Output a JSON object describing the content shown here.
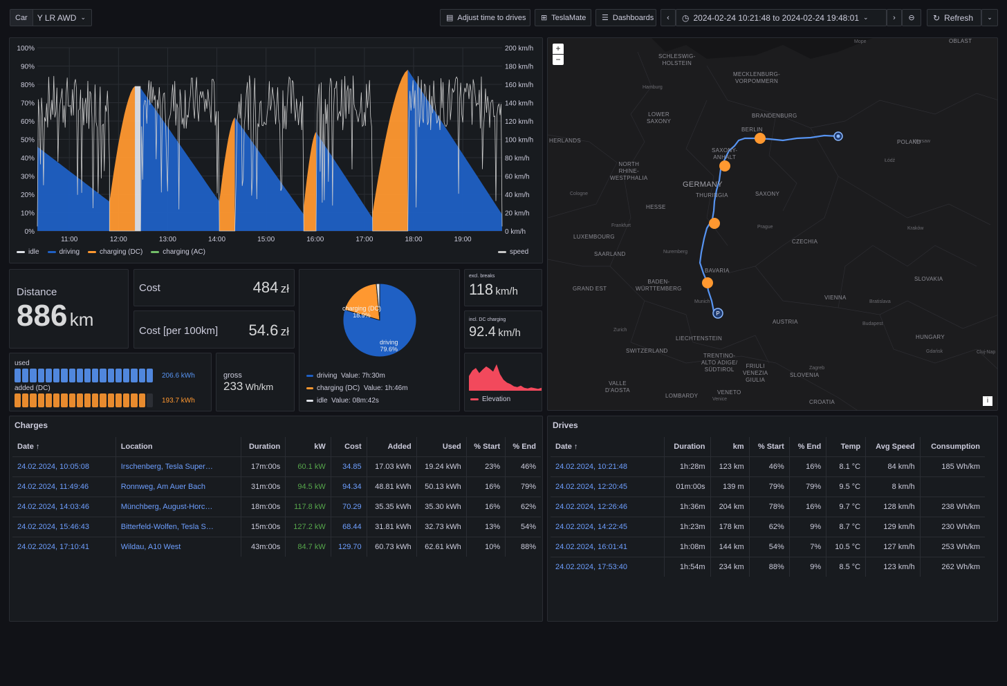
{
  "toolbar": {
    "car_label": "Car",
    "car_value": "Y LR AWD",
    "adjust": "Adjust time to drives",
    "teslamate": "TeslaMate",
    "dashboards": "Dashboards",
    "timerange": "2024-02-24 10:21:48 to 2024-02-24 19:48:01",
    "refresh": "Refresh"
  },
  "chart_data": [
    {
      "type": "area",
      "x_ticks": [
        "11:00",
        "12:00",
        "13:00",
        "14:00",
        "15:00",
        "16:00",
        "17:00",
        "18:00",
        "19:00"
      ],
      "y_left_ticks": [
        "100%",
        "90%",
        "80%",
        "70%",
        "60%",
        "50%",
        "40%",
        "30%",
        "20%",
        "10%",
        "0%"
      ],
      "y_right_ticks": [
        "200 km/h",
        "180 km/h",
        "160 km/h",
        "140 km/h",
        "120 km/h",
        "100 km/h",
        "80 km/h",
        "60 km/h",
        "40 km/h",
        "20 km/h",
        "0 km/h"
      ],
      "ylim_left": [
        0,
        100
      ],
      "ylim_right": [
        0,
        200
      ],
      "legend": [
        "idle",
        "driving",
        "charging (DC)",
        "charging (AC)",
        "speed"
      ],
      "colors": {
        "idle": "#dfe2e8",
        "driving": "#1f60c4",
        "charging_dc": "#ff9830",
        "charging_ac": "#73bf69",
        "speed": "#c8c8c8"
      },
      "segments": [
        {
          "state": "driving",
          "start": "10:21",
          "end": "11:49",
          "soc_start": 46,
          "soc_end": 16
        },
        {
          "state": "charging (DC)",
          "start": "11:49",
          "end": "12:20",
          "soc_start": 16,
          "soc_end": 79
        },
        {
          "state": "idle",
          "start": "12:20",
          "end": "12:27",
          "soc_start": 79,
          "soc_end": 79
        },
        {
          "state": "driving",
          "start": "12:27",
          "end": "14:03",
          "soc_start": 78,
          "soc_end": 16
        },
        {
          "state": "charging (DC)",
          "start": "14:03",
          "end": "14:22",
          "soc_start": 16,
          "soc_end": 62
        },
        {
          "state": "driving",
          "start": "14:22",
          "end": "15:46",
          "soc_start": 62,
          "soc_end": 9
        },
        {
          "state": "charging (DC)",
          "start": "15:46",
          "end": "16:01",
          "soc_start": 13,
          "soc_end": 54
        },
        {
          "state": "driving",
          "start": "16:01",
          "end": "17:10",
          "soc_start": 54,
          "soc_end": 7
        },
        {
          "state": "charging (DC)",
          "start": "17:10",
          "end": "17:53",
          "soc_start": 10,
          "soc_end": 88
        },
        {
          "state": "driving",
          "start": "17:53",
          "end": "19:48",
          "soc_start": 88,
          "soc_end": 9
        }
      ]
    },
    {
      "type": "pie",
      "slices": [
        {
          "label": "driving",
          "percent": 79.6,
          "value": "7h:30m"
        },
        {
          "label": "charging (DC)",
          "percent": 18.9,
          "value": "1h:46m"
        },
        {
          "label": "idle",
          "percent": 1.5,
          "value": "08m:42s"
        }
      ]
    },
    {
      "type": "area",
      "title": "Elevation",
      "values": [
        40,
        55,
        62,
        48,
        58,
        66,
        60,
        52,
        72,
        45,
        30,
        22,
        18,
        12,
        10,
        14,
        8,
        6,
        9,
        7,
        5,
        8
      ]
    }
  ],
  "chart_labels": {
    "pie_driving": "driving",
    "pie_driving_pct": "79.6%",
    "pie_dc": "charging (DC)",
    "pie_dc_pct": "18.9%",
    "legend_driving": "driving",
    "legend_driving_value": "Value: 7h:30m",
    "legend_dc": "charging (DC)",
    "legend_dc_value": "Value: 1h:46m",
    "legend_idle": "idle",
    "legend_idle_value": "Value: 08m:42s"
  },
  "stats": {
    "distance_label": "Distance",
    "distance_value": "886",
    "distance_unit": "km",
    "cost_label": "Cost",
    "cost_value": "484",
    "cost_unit": "zł",
    "cost100_label": "Cost [per 100km]",
    "cost100_value": "54.6",
    "cost100_unit": "zł",
    "speed_excl_label": "excl. breaks",
    "speed_excl_value": "118",
    "speed_excl_unit": "km/h",
    "speed_incl_label": "incl. DC charging",
    "speed_incl_value": "92.4",
    "speed_incl_unit": "km/h",
    "used_label": "used",
    "used_value": "206.6 kWh",
    "added_label": "added (DC)",
    "added_value": "193.7 kWh",
    "gross_label": "gross",
    "gross_value": "233",
    "gross_unit": "Wh/km",
    "elevation_label": "Elevation"
  },
  "map": {
    "zoom_in": "+",
    "zoom_out": "−",
    "info": "i",
    "labels": [
      "SCHLESWIG-\nHOLSTEIN",
      "MECKLENBURG-\nVORPOMMERN",
      "LOWER\nSAXONY",
      "BRANDENBURG",
      "BERLIN",
      "POLAND",
      "SAXONY-\nANHALT",
      "NORTH\nRHINE-\nWESTPHALIA",
      "GERMANY",
      "THURINGIA",
      "SAXONY",
      "HESSE",
      "LUXEMBOURG",
      "SAARLAND",
      "CZECHIA",
      "BAVARIA",
      "BADEN-\nWÜRTTEMBERG",
      "GRAND EST",
      "VIENNA",
      "SLOVAKIA",
      "AUSTRIA",
      "HUNGARY",
      "LIECHTENSTEIN",
      "SWITZERLAND",
      "TRENTINO-\nALTO ADIGE/\nSÜDTIROL",
      "FRIULI\nVENEZIA\nGIULIA",
      "SLOVENIA",
      "VALLE\nD'AOSTA",
      "LOMBARDY",
      "VENETO",
      "CROATIA",
      "OBLAST",
      "HERLANDS"
    ],
    "cities": [
      "Hamburg",
      "Cologne",
      "Frankfurt",
      "Nuremberg",
      "Munich",
      "Prague",
      "Warsaw",
      "Łódź",
      "Kraków",
      "Bratislava",
      "Budapest",
      "Zurich",
      "Zagreb",
      "Gdańsk",
      "Mope",
      "Cluj-Nap",
      "Venice"
    ]
  },
  "charges": {
    "title": "Charges",
    "columns": [
      "Date",
      "Location",
      "Duration",
      "kW",
      "Cost",
      "Added",
      "Used",
      "% Start",
      "% End"
    ],
    "rows": [
      [
        "24.02.2024, 10:05:08",
        "Irschenberg, Tesla Super…",
        "17m:00s",
        "60.1 kW",
        "34.85",
        "17.03 kWh",
        "19.24 kWh",
        "23%",
        "46%"
      ],
      [
        "24.02.2024, 11:49:46",
        "Ronnweg, Am Auer Bach",
        "31m:00s",
        "94.5 kW",
        "94.34",
        "48.81 kWh",
        "50.13 kWh",
        "16%",
        "79%"
      ],
      [
        "24.02.2024, 14:03:46",
        "Münchberg, August-Horc…",
        "18m:00s",
        "117.8 kW",
        "70.29",
        "35.35 kWh",
        "35.30 kWh",
        "16%",
        "62%"
      ],
      [
        "24.02.2024, 15:46:43",
        "Bitterfeld-Wolfen, Tesla S…",
        "15m:00s",
        "127.2 kW",
        "68.44",
        "31.81 kWh",
        "32.73 kWh",
        "13%",
        "54%"
      ],
      [
        "24.02.2024, 17:10:41",
        "Wildau, A10 West",
        "43m:00s",
        "84.7 kW",
        "129.70",
        "60.73 kWh",
        "62.61 kWh",
        "10%",
        "88%"
      ]
    ]
  },
  "drives": {
    "title": "Drives",
    "columns": [
      "Date",
      "Duration",
      "km",
      "% Start",
      "% End",
      "Temp",
      "Avg Speed",
      "Consumption"
    ],
    "rows": [
      [
        "24.02.2024, 10:21:48",
        "1h:28m",
        "123 km",
        "46%",
        "16%",
        "8.1 °C",
        "84 km/h",
        "185 Wh/km"
      ],
      [
        "24.02.2024, 12:20:45",
        "01m:00s",
        "139 m",
        "79%",
        "79%",
        "9.5 °C",
        "8 km/h",
        ""
      ],
      [
        "24.02.2024, 12:26:46",
        "1h:36m",
        "204 km",
        "78%",
        "16%",
        "9.7 °C",
        "128 km/h",
        "238 Wh/km"
      ],
      [
        "24.02.2024, 14:22:45",
        "1h:23m",
        "178 km",
        "62%",
        "9%",
        "8.7 °C",
        "129 km/h",
        "230 Wh/km"
      ],
      [
        "24.02.2024, 16:01:41",
        "1h:08m",
        "144 km",
        "54%",
        "7%",
        "10.5 °C",
        "127 km/h",
        "253 Wh/km"
      ],
      [
        "24.02.2024, 17:53:40",
        "1h:54m",
        "234 km",
        "88%",
        "9%",
        "8.5 °C",
        "123 km/h",
        "262 Wh/km"
      ]
    ]
  }
}
